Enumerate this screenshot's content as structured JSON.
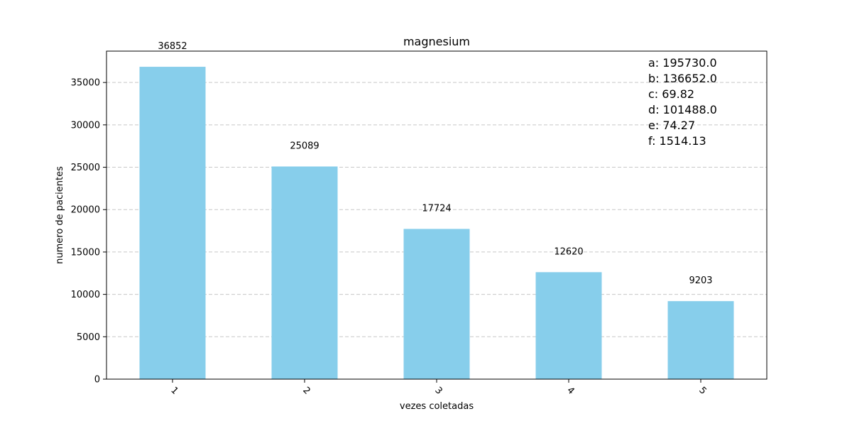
{
  "chart_data": {
    "type": "bar",
    "title": "magnesium",
    "xlabel": "vezes coletadas",
    "ylabel": "numero de pacientes",
    "categories": [
      "1",
      "2",
      "3",
      "4",
      "5"
    ],
    "values": [
      36852,
      25089,
      17724,
      12620,
      9203
    ],
    "data_labels": [
      "36852",
      "25089",
      "17724",
      "12620",
      "9203"
    ],
    "ylim": [
      0,
      38700
    ],
    "yticks": [
      0,
      5000,
      10000,
      15000,
      20000,
      25000,
      30000,
      35000
    ],
    "grid": "y",
    "bar_color": "#87ceeb",
    "stats": [
      "a: 195730.0",
      "b: 136652.0",
      "c: 69.82",
      "d: 101488.0",
      "e: 74.27",
      "f: 1514.13"
    ]
  }
}
